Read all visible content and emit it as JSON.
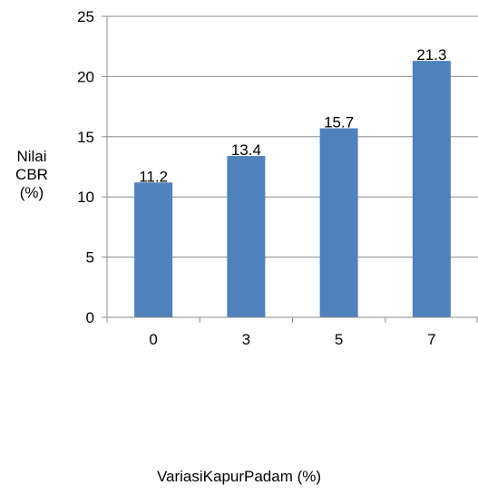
{
  "chart_data": {
    "type": "bar",
    "categories": [
      "0",
      "3",
      "5",
      "7"
    ],
    "values": [
      11.2,
      13.4,
      15.7,
      21.3
    ],
    "data_labels": [
      "11.2",
      "13.4",
      "15.7",
      "21.3"
    ],
    "ylabel_lines": [
      "Nilai",
      "CBR",
      "(%)"
    ],
    "xlabel": "VariasiKapurPadam (%)",
    "ylim": [
      0,
      25
    ],
    "yticks": [
      0,
      5,
      10,
      15,
      20,
      25
    ],
    "ytick_labels": [
      "0",
      "5",
      "10",
      "15",
      "20",
      "25"
    ],
    "bar_color": "#4f81bd",
    "grid": true,
    "legend": "none"
  }
}
